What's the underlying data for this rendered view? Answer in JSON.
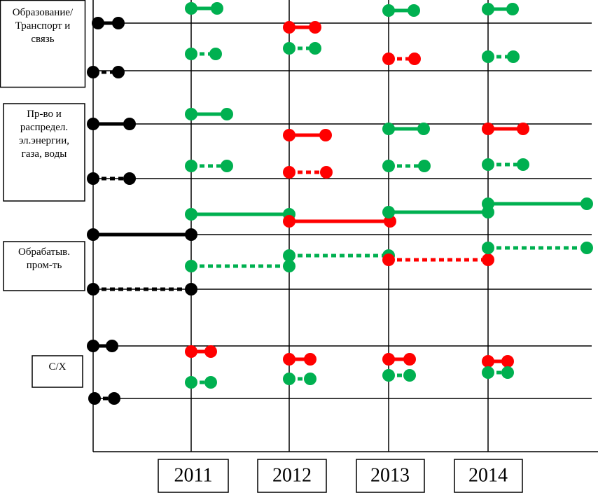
{
  "rows": [
    [
      "Образование/",
      "Транспорт и",
      "связь"
    ],
    [
      "Пр-во и",
      "распредел.",
      "эл.энергии,",
      "газа, воды"
    ],
    [
      "Обрабатыв.",
      "пром-ть"
    ],
    [
      "С/Х"
    ]
  ],
  "years": [
    "2011",
    "2012",
    "2013",
    "2014"
  ]
}
